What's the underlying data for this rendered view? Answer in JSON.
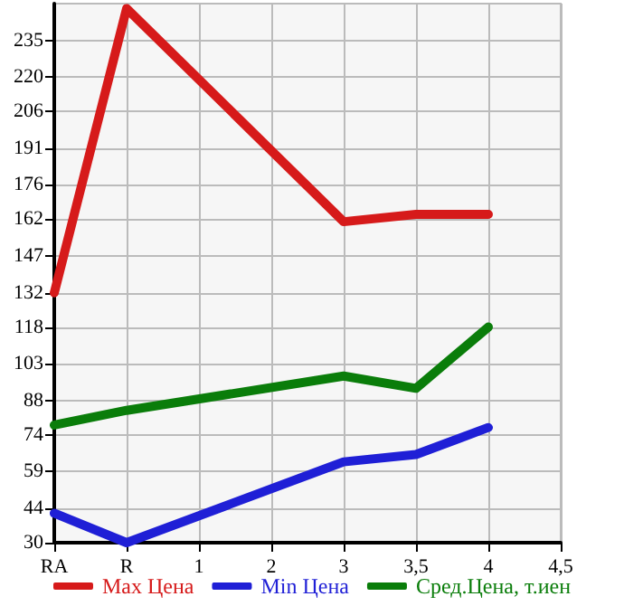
{
  "chart_data": {
    "type": "line",
    "categories": [
      "RA",
      "R",
      "1",
      "2",
      "3",
      "3,5",
      "4",
      "4,5"
    ],
    "series": [
      {
        "name": "Max Цена",
        "color": "#d61a1a",
        "values": [
          132,
          248,
          null,
          null,
          161,
          164,
          164,
          null
        ]
      },
      {
        "name": "Min Цена",
        "color": "#1f1fd6",
        "values": [
          42,
          30,
          null,
          null,
          63,
          66,
          77,
          null
        ]
      },
      {
        "name": "Сред.Цена, т.иен",
        "color": "#0a7d0a",
        "values": [
          78,
          84,
          null,
          null,
          98,
          93,
          118,
          null
        ]
      }
    ],
    "ylim": [
      30,
      250
    ],
    "yticks": [
      30,
      44,
      59,
      74,
      88,
      103,
      118,
      132,
      147,
      162,
      176,
      191,
      206,
      220,
      235
    ],
    "grid": true,
    "legend": "bottom",
    "marker": "none",
    "line_style": "solid"
  }
}
